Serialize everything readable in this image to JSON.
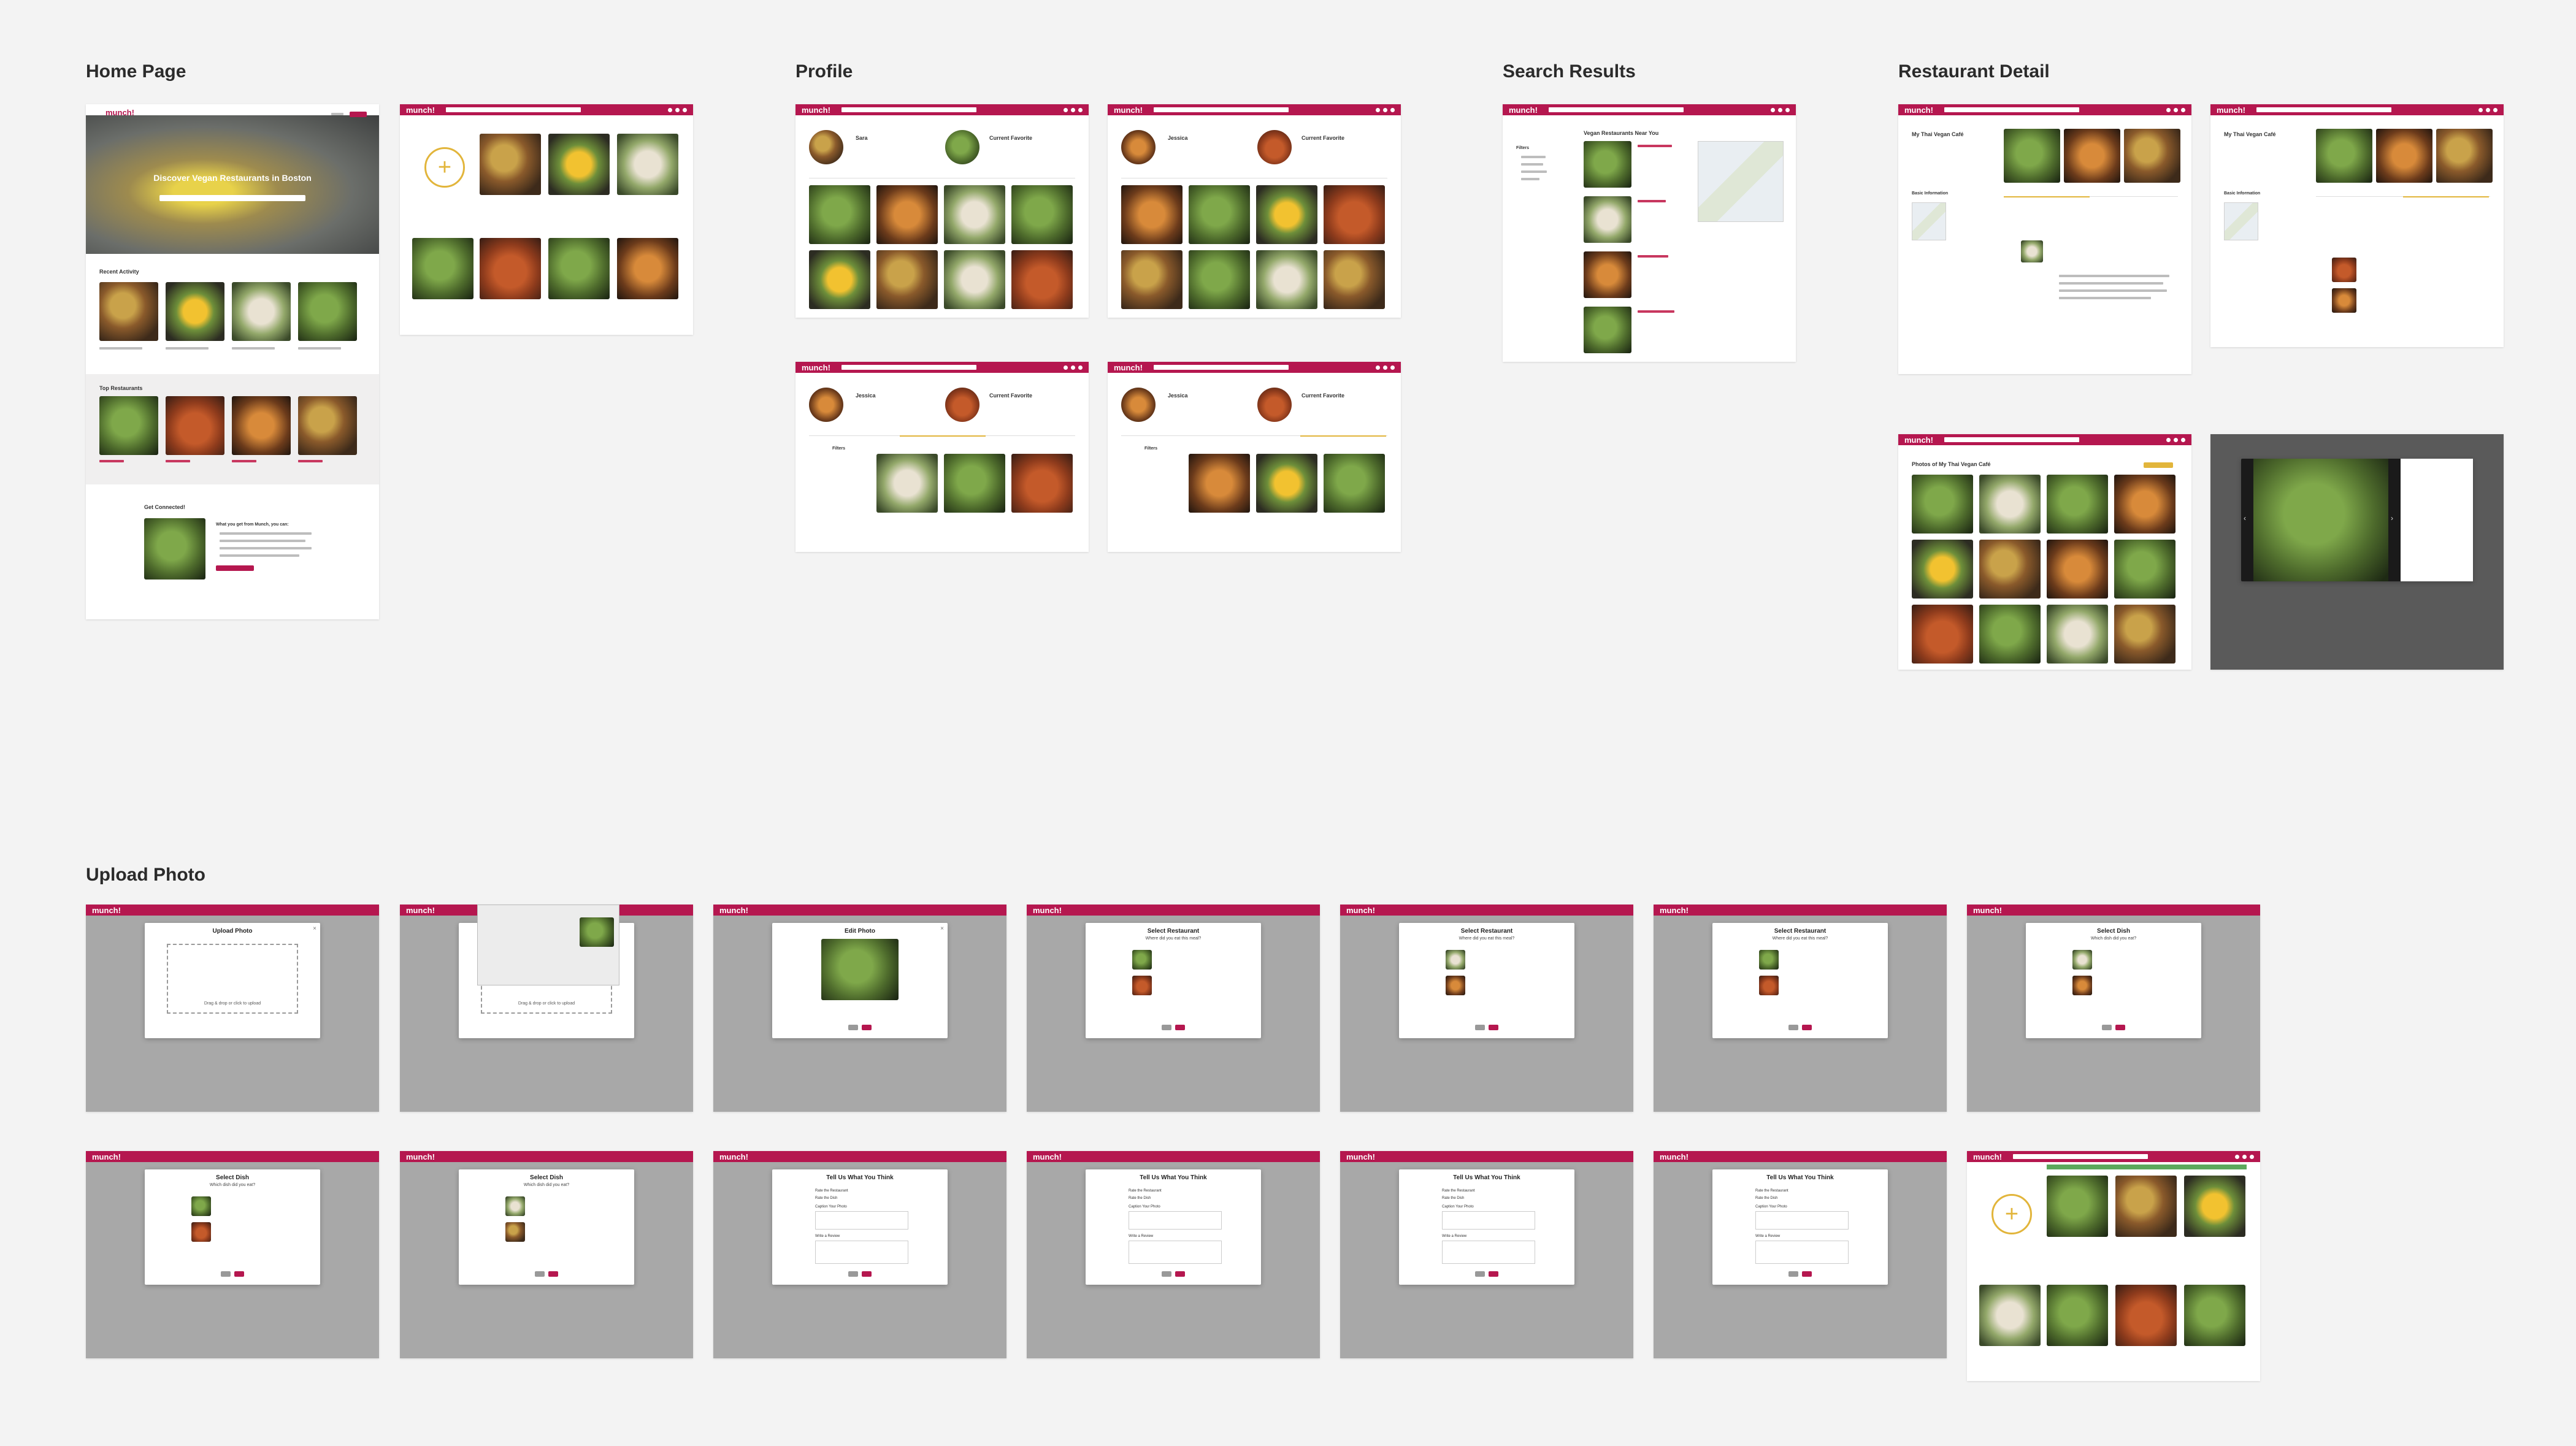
{
  "sections": {
    "home": "Home Page",
    "profile": "Profile",
    "search": "Search Results",
    "restaurant": "Restaurant Detail",
    "upload": "Upload Photo"
  },
  "app": {
    "logo": "munch!",
    "brand_color": "#b5174f",
    "accent_color": "#e2b53b"
  },
  "home": {
    "hero_text": "Discover Vegan Restaurants in Boston",
    "recent_activity": "Recent Activity",
    "top_restaurants": "Top Restaurants",
    "get_connected": "Get Connected!",
    "what_you_get": "What you get from Munch, you can:"
  },
  "profile": {
    "current_favorite": "Current Favorite",
    "user_sara": "Sara",
    "user_jessica": "Jessica",
    "filters": "Filters"
  },
  "search": {
    "heading": "Vegan Restaurants Near You",
    "filters": "Filters"
  },
  "restaurant": {
    "name": "My Thai Vegan Café",
    "basic_info": "Basic Information",
    "photos_of": "Photos of My Thai Vegan Café"
  },
  "upload": {
    "upload_photo": "Upload Photo",
    "drag_drop": "Drag & drop or click to upload",
    "edit_photo": "Edit Photo",
    "select_restaurant": "Select Restaurant",
    "where_did_you_eat": "Where did you eat this meal?",
    "select_dish": "Select Dish",
    "which_dish": "Which dish did you eat?",
    "tell_us": "Tell Us What You Think",
    "rate_restaurant": "Rate the Restaurant",
    "rate_dish": "Rate the Dish",
    "caption": "Caption Your Photo",
    "write_review": "Write a Review",
    "back": "Back",
    "next": "Next"
  }
}
